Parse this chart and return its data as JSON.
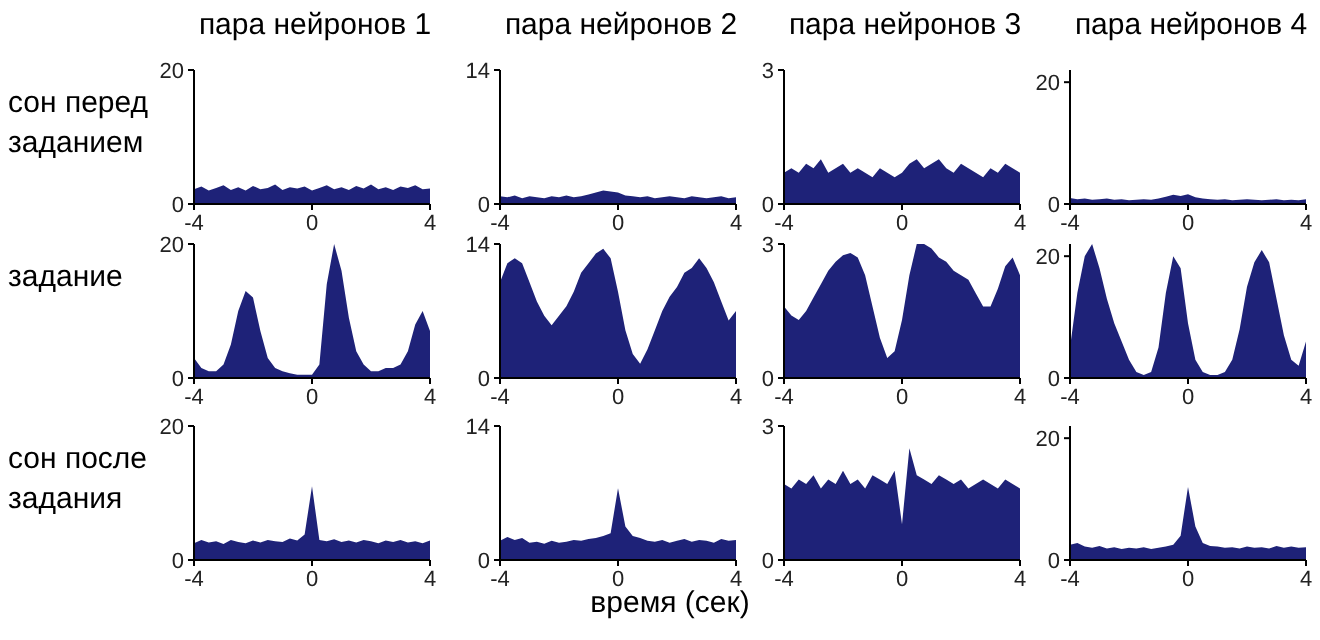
{
  "chart_data": [
    {
      "type": "area",
      "title": "пара нейронов 1",
      "ylabel": "сон перед заданием",
      "x": [
        -4,
        -3.75,
        -3.5,
        -3.25,
        -3,
        -2.75,
        -2.5,
        -2.25,
        -2,
        -1.75,
        -1.5,
        -1.25,
        -1,
        -0.75,
        -0.5,
        -0.25,
        0,
        0.25,
        0.5,
        0.75,
        1,
        1.25,
        1.5,
        1.75,
        2,
        2.25,
        2.5,
        2.75,
        3,
        3.25,
        3.5,
        3.75,
        4
      ],
      "color": "#1e2278",
      "values": [
        2.2,
        2.6,
        2,
        2.4,
        2.8,
        2.1,
        2.5,
        2,
        2.7,
        2.2,
        2.4,
        2.9,
        2.1,
        2.5,
        2.3,
        2.6,
        2,
        2.4,
        2.8,
        2.2,
        2.5,
        2.1,
        2.7,
        2.3,
        2.9,
        2.2,
        2.5,
        2.1,
        2.6,
        2.4,
        2.8,
        2.2,
        2.3
      ],
      "xlim": [
        -4,
        4
      ],
      "ylim": [
        0,
        20
      ],
      "xticks": [
        -4,
        0,
        4
      ],
      "yticks": [
        0,
        20
      ]
    },
    {
      "type": "area",
      "title": "пара нейронов 2",
      "x": [
        -4,
        -3.75,
        -3.5,
        -3.25,
        -3,
        -2.75,
        -2.5,
        -2.25,
        -2,
        -1.75,
        -1.5,
        -1.25,
        -1,
        -0.75,
        -0.5,
        -0.25,
        0,
        0.25,
        0.5,
        0.75,
        1,
        1.25,
        1.5,
        1.75,
        2,
        2.25,
        2.5,
        2.75,
        3,
        3.25,
        3.5,
        3.75,
        4
      ],
      "color": "#1e2278",
      "values": [
        0.8,
        0.7,
        0.9,
        0.6,
        0.8,
        0.7,
        0.6,
        0.8,
        0.7,
        0.9,
        0.7,
        0.8,
        1,
        1.2,
        1.4,
        1.3,
        1.2,
        0.9,
        0.8,
        0.7,
        0.8,
        0.6,
        0.7,
        0.8,
        0.7,
        0.6,
        0.8,
        0.7,
        0.6,
        0.7,
        0.8,
        0.6,
        0.7
      ],
      "xlim": [
        -4,
        4
      ],
      "ylim": [
        0,
        14
      ],
      "xticks": [
        -4,
        0,
        4
      ],
      "yticks": [
        0,
        14
      ]
    },
    {
      "type": "area",
      "title": "пара нейронов 3",
      "x": [
        -4,
        -3.75,
        -3.5,
        -3.25,
        -3,
        -2.75,
        -2.5,
        -2.25,
        -2,
        -1.75,
        -1.5,
        -1.25,
        -1,
        -0.75,
        -0.5,
        -0.25,
        0,
        0.25,
        0.5,
        0.75,
        1,
        1.25,
        1.5,
        1.75,
        2,
        2.25,
        2.5,
        2.75,
        3,
        3.25,
        3.5,
        3.75,
        4
      ],
      "color": "#1e2278",
      "values": [
        0.7,
        0.8,
        0.7,
        0.9,
        0.8,
        1,
        0.7,
        0.8,
        0.9,
        0.7,
        0.8,
        0.7,
        0.6,
        0.8,
        0.7,
        0.6,
        0.7,
        0.9,
        1,
        0.8,
        0.9,
        1,
        0.8,
        0.7,
        0.9,
        0.8,
        0.7,
        0.6,
        0.8,
        0.7,
        0.9,
        0.8,
        0.7
      ],
      "xlim": [
        -4,
        4
      ],
      "ylim": [
        0,
        3
      ],
      "xticks": [
        -4,
        0,
        4
      ],
      "yticks": [
        0,
        3
      ]
    },
    {
      "type": "area",
      "title": "пара нейронов 4",
      "x": [
        -4,
        -3.75,
        -3.5,
        -3.25,
        -3,
        -2.75,
        -2.5,
        -2.25,
        -2,
        -1.75,
        -1.5,
        -1.25,
        -1,
        -0.75,
        -0.5,
        -0.25,
        0,
        0.25,
        0.5,
        0.75,
        1,
        1.25,
        1.5,
        1.75,
        2,
        2.25,
        2.5,
        2.75,
        3,
        3.25,
        3.5,
        3.75,
        4
      ],
      "color": "#1e2278",
      "values": [
        1,
        0.8,
        0.9,
        0.7,
        0.8,
        0.9,
        0.7,
        0.8,
        0.6,
        0.7,
        0.8,
        0.7,
        0.9,
        1.2,
        1.5,
        1.3,
        1.6,
        1.1,
        0.9,
        0.8,
        0.7,
        0.8,
        0.6,
        0.7,
        0.8,
        0.7,
        0.6,
        0.7,
        0.8,
        0.6,
        0.7,
        0.6,
        0.8
      ],
      "xlim": [
        -4,
        4
      ],
      "ylim": [
        0,
        22
      ],
      "xticks": [
        -4,
        0,
        4
      ],
      "yticks": [
        0,
        20
      ]
    },
    {
      "type": "area",
      "ylabel": "задание",
      "x": [
        -4,
        -3.75,
        -3.5,
        -3.25,
        -3,
        -2.75,
        -2.5,
        -2.25,
        -2,
        -1.75,
        -1.5,
        -1.25,
        -1,
        -0.75,
        -0.5,
        -0.25,
        0,
        0.25,
        0.5,
        0.75,
        1,
        1.25,
        1.5,
        1.75,
        2,
        2.25,
        2.5,
        2.75,
        3,
        3.25,
        3.5,
        3.75,
        4
      ],
      "color": "#1e2278",
      "values": [
        3,
        1.5,
        1,
        1,
        2,
        5,
        10,
        13,
        12,
        7,
        3,
        1.5,
        1,
        0.7,
        0.5,
        0.5,
        0.5,
        2,
        14,
        20,
        16,
        9,
        4,
        2,
        1,
        1,
        1.5,
        1.5,
        2,
        4,
        8,
        10,
        7
      ],
      "xlim": [
        -4,
        4
      ],
      "ylim": [
        0,
        20
      ],
      "xticks": [
        -4,
        0,
        4
      ],
      "yticks": [
        0,
        20
      ]
    },
    {
      "type": "area",
      "x": [
        -4,
        -3.75,
        -3.5,
        -3.25,
        -3,
        -2.75,
        -2.5,
        -2.25,
        -2,
        -1.75,
        -1.5,
        -1.25,
        -1,
        -0.75,
        -0.5,
        -0.25,
        0,
        0.25,
        0.5,
        0.75,
        1,
        1.25,
        1.5,
        1.75,
        2,
        2.25,
        2.5,
        2.75,
        3,
        3.25,
        3.5,
        3.75,
        4
      ],
      "color": "#1e2278",
      "values": [
        10,
        12,
        12.5,
        12,
        10,
        8,
        6.5,
        5.5,
        6.5,
        7.5,
        9,
        11,
        12,
        13,
        13.5,
        12.5,
        9,
        5,
        2.5,
        1.5,
        3,
        5,
        7,
        8.5,
        9.5,
        11,
        11.5,
        12.5,
        11.5,
        10,
        8,
        6,
        7
      ],
      "xlim": [
        -4,
        4
      ],
      "ylim": [
        0,
        14
      ],
      "xticks": [
        -4,
        0,
        4
      ],
      "yticks": [
        0,
        14
      ]
    },
    {
      "type": "area",
      "x": [
        -4,
        -3.75,
        -3.5,
        -3.25,
        -3,
        -2.75,
        -2.5,
        -2.25,
        -2,
        -1.75,
        -1.5,
        -1.25,
        -1,
        -0.75,
        -0.5,
        -0.25,
        0,
        0.25,
        0.5,
        0.75,
        1,
        1.25,
        1.5,
        1.75,
        2,
        2.25,
        2.5,
        2.75,
        3,
        3.25,
        3.5,
        3.75,
        4
      ],
      "color": "#1e2278",
      "values": [
        1.6,
        1.4,
        1.3,
        1.5,
        1.8,
        2.1,
        2.4,
        2.6,
        2.75,
        2.8,
        2.7,
        2.3,
        1.6,
        0.9,
        0.45,
        0.6,
        1.3,
        2.3,
        3,
        3,
        2.9,
        2.7,
        2.6,
        2.4,
        2.3,
        2.2,
        1.9,
        1.6,
        1.6,
        2,
        2.5,
        2.7,
        2.3
      ],
      "xlim": [
        -4,
        4
      ],
      "ylim": [
        0,
        3
      ],
      "xticks": [
        -4,
        0,
        4
      ],
      "yticks": [
        0,
        3
      ]
    },
    {
      "type": "area",
      "x": [
        -4,
        -3.75,
        -3.5,
        -3.25,
        -3,
        -2.75,
        -2.5,
        -2.25,
        -2,
        -1.75,
        -1.5,
        -1.25,
        -1,
        -0.75,
        -0.5,
        -0.25,
        0,
        0.25,
        0.5,
        0.75,
        1,
        1.25,
        1.5,
        1.75,
        2,
        2.25,
        2.5,
        2.75,
        3,
        3.25,
        3.5,
        3.75,
        4
      ],
      "color": "#1e2278",
      "values": [
        5,
        14,
        20,
        22,
        18,
        13,
        9,
        6,
        3,
        1,
        0.5,
        1,
        5,
        14,
        20,
        18,
        9,
        3,
        1,
        0.5,
        0.5,
        1,
        3,
        8,
        15,
        19,
        21,
        19,
        13,
        7,
        3,
        2,
        6
      ],
      "xlim": [
        -4,
        4
      ],
      "ylim": [
        0,
        22
      ],
      "xticks": [
        -4,
        0,
        4
      ],
      "yticks": [
        0,
        20
      ]
    },
    {
      "type": "area",
      "ylabel": "сон после задания",
      "x": [
        -4,
        -3.75,
        -3.5,
        -3.25,
        -3,
        -2.75,
        -2.5,
        -2.25,
        -2,
        -1.75,
        -1.5,
        -1.25,
        -1,
        -0.75,
        -0.5,
        -0.25,
        0,
        0.25,
        0.5,
        0.75,
        1,
        1.25,
        1.5,
        1.75,
        2,
        2.25,
        2.5,
        2.75,
        3,
        3.25,
        3.5,
        3.75,
        4
      ],
      "color": "#1e2278",
      "values": [
        2.5,
        3,
        2.6,
        2.8,
        2.4,
        3,
        2.7,
        2.5,
        2.9,
        2.6,
        3,
        2.8,
        2.7,
        3.2,
        2.9,
        3.8,
        11,
        3,
        2.8,
        3.1,
        2.7,
        2.9,
        2.6,
        3,
        2.8,
        2.5,
        2.9,
        2.7,
        3,
        2.6,
        2.8,
        2.5,
        2.9
      ],
      "xlim": [
        -4,
        4
      ],
      "ylim": [
        0,
        20
      ],
      "xticks": [
        -4,
        0,
        4
      ],
      "yticks": [
        0,
        20
      ]
    },
    {
      "type": "area",
      "xlabel": "время (сек)",
      "x": [
        -4,
        -3.75,
        -3.5,
        -3.25,
        -3,
        -2.75,
        -2.5,
        -2.25,
        -2,
        -1.75,
        -1.5,
        -1.25,
        -1,
        -0.75,
        -0.5,
        -0.25,
        0,
        0.25,
        0.5,
        0.75,
        1,
        1.25,
        1.5,
        1.75,
        2,
        2.25,
        2.5,
        2.75,
        3,
        3.25,
        3.5,
        3.75,
        4
      ],
      "color": "#1e2278",
      "values": [
        2,
        2.4,
        2.1,
        2.3,
        1.8,
        1.9,
        1.7,
        2,
        1.8,
        1.9,
        2.1,
        2,
        2.2,
        2.3,
        2.5,
        2.8,
        7.5,
        3.5,
        2.5,
        2.3,
        2,
        1.9,
        2.1,
        1.8,
        2,
        2.2,
        1.9,
        2.1,
        2,
        1.8,
        2.2,
        2,
        2.1
      ],
      "xlim": [
        -4,
        4
      ],
      "ylim": [
        0,
        14
      ],
      "xticks": [
        -4,
        0,
        4
      ],
      "yticks": [
        0,
        14
      ]
    },
    {
      "type": "area",
      "x": [
        -4,
        -3.75,
        -3.5,
        -3.25,
        -3,
        -2.75,
        -2.5,
        -2.25,
        -2,
        -1.75,
        -1.5,
        -1.25,
        -1,
        -0.75,
        -0.5,
        -0.25,
        0,
        0.25,
        0.5,
        0.75,
        1,
        1.25,
        1.5,
        1.75,
        2,
        2.25,
        2.5,
        2.75,
        3,
        3.25,
        3.5,
        3.75,
        4
      ],
      "color": "#1e2278",
      "values": [
        1.7,
        1.6,
        1.8,
        1.7,
        1.9,
        1.6,
        1.8,
        1.7,
        2,
        1.7,
        1.8,
        1.6,
        1.9,
        1.8,
        1.7,
        2,
        0.8,
        2.5,
        1.9,
        1.8,
        1.7,
        1.9,
        1.8,
        1.7,
        1.8,
        1.6,
        1.7,
        1.8,
        1.7,
        1.6,
        1.8,
        1.7,
        1.6
      ],
      "xlim": [
        -4,
        4
      ],
      "ylim": [
        0,
        3
      ],
      "xticks": [
        -4,
        0,
        4
      ],
      "yticks": [
        0,
        3
      ]
    },
    {
      "type": "area",
      "x": [
        -4,
        -3.75,
        -3.5,
        -3.25,
        -3,
        -2.75,
        -2.5,
        -2.25,
        -2,
        -1.75,
        -1.5,
        -1.25,
        -1,
        -0.75,
        -0.5,
        -0.25,
        0,
        0.25,
        0.5,
        0.75,
        1,
        1.25,
        1.5,
        1.75,
        2,
        2.25,
        2.5,
        2.75,
        3,
        3.25,
        3.5,
        3.75,
        4
      ],
      "color": "#1e2278",
      "values": [
        2.5,
        2.8,
        2.2,
        2,
        2.3,
        1.9,
        2.1,
        1.8,
        2,
        1.9,
        2.1,
        1.8,
        2,
        2.2,
        2.5,
        4,
        12,
        5.5,
        2.8,
        2.3,
        2.2,
        2,
        2.1,
        1.9,
        2.2,
        2,
        2.1,
        1.9,
        2.3,
        2,
        2.2,
        2,
        2.1
      ],
      "xlim": [
        -4,
        4
      ],
      "ylim": [
        0,
        22
      ],
      "xticks": [
        -4,
        0,
        4
      ],
      "yticks": [
        0,
        20
      ]
    }
  ]
}
